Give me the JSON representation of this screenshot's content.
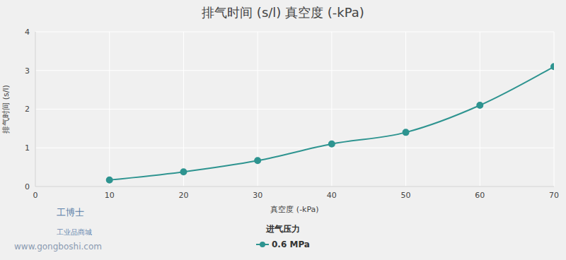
{
  "chart_data": {
    "type": "line",
    "title": "排气时间 (s/l) 真空度 (-kPa)",
    "x_label": "真空度 (-kPa)",
    "y_label": "排气时间 (s/l)",
    "x": [
      10,
      20,
      30,
      40,
      50,
      60,
      70
    ],
    "series": [
      {
        "name": "0.6 MPa",
        "color": "#2e9490",
        "values": [
          0.17,
          0.38,
          0.67,
          1.1,
          1.4,
          2.1,
          3.1
        ],
        "marker": "circle"
      }
    ],
    "xlim": [
      0,
      70
    ],
    "xticks": [
      0,
      10,
      20,
      30,
      40,
      50,
      60,
      70
    ],
    "ylim": [
      0,
      4
    ],
    "yticks": [
      0,
      1,
      2,
      3,
      4
    ],
    "grid": true,
    "legend": "bottom",
    "legend_title": "进气压力",
    "annotations": [
      "工博士",
      "工业品商城",
      "www.gongboshi.com"
    ]
  }
}
